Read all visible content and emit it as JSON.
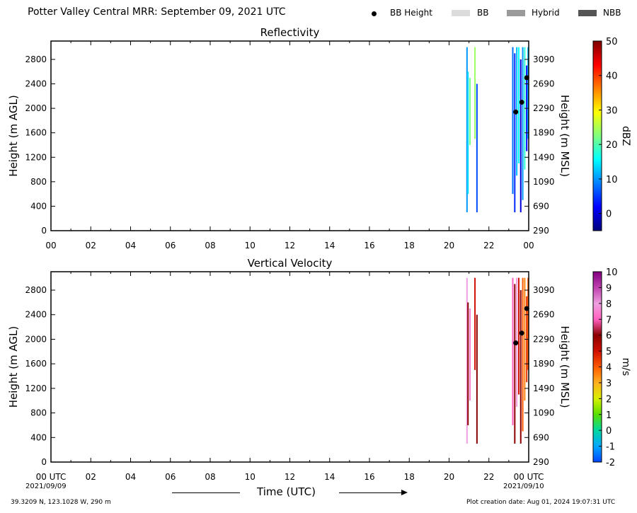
{
  "header": {
    "title": "Potter Valley Central MRR:  September 09, 2021 UTC",
    "legend": [
      {
        "label": "BB Height",
        "kind": "dot",
        "color": "#000000"
      },
      {
        "label": "BB",
        "kind": "swatch",
        "color": "#dcdcdc"
      },
      {
        "label": "Hybrid",
        "kind": "swatch",
        "color": "#9a9a9a"
      },
      {
        "label": "NBB",
        "kind": "swatch",
        "color": "#555555"
      }
    ]
  },
  "footer": {
    "location": "39.3209 N, 123.1028 W, 290 m",
    "created": "Plot creation date: Aug 01, 2024 19:07:31 UTC",
    "xlabel": "Time (UTC)",
    "start_date": "2021/09/09",
    "end_date": "2021/09/10"
  },
  "chart_data": [
    {
      "type": "heatmap",
      "title": "Reflectivity",
      "xlabel": "",
      "ylabel": "Height (m AGL)",
      "ylabel_right": "Height (m MSL)",
      "colorbar_label": "dBZ",
      "xlim": [
        0,
        24
      ],
      "ylim": [
        0,
        3100
      ],
      "x_ticks": [
        "00",
        "02",
        "04",
        "06",
        "08",
        "10",
        "12",
        "14",
        "16",
        "18",
        "20",
        "22",
        "00"
      ],
      "y_ticks": [
        0,
        400,
        800,
        1200,
        1600,
        2000,
        2400,
        2800
      ],
      "y_right_ticks": [
        290,
        690,
        1090,
        1490,
        1890,
        2290,
        2690,
        3090
      ],
      "colorbar": {
        "min": -5,
        "max": 50,
        "ticks": [
          0,
          10,
          20,
          30,
          40,
          50
        ],
        "colormap": "jet"
      },
      "bright_band_heights": [
        {
          "time": 23.35,
          "height": 1940
        },
        {
          "time": 23.65,
          "height": 2100
        },
        {
          "time": 23.9,
          "height": 2500
        }
      ],
      "profiles": [
        {
          "time": 20.9,
          "bottom": 300,
          "top": 3000,
          "value": 10
        },
        {
          "time": 20.95,
          "bottom": 600,
          "top": 2600,
          "value": 14
        },
        {
          "time": 21.05,
          "bottom": 1400,
          "top": 2500,
          "value": 22
        },
        {
          "time": 21.3,
          "bottom": 1500,
          "top": 3000,
          "value": 24
        },
        {
          "time": 21.4,
          "bottom": 300,
          "top": 2400,
          "value": 6
        },
        {
          "time": 23.2,
          "bottom": 600,
          "top": 3000,
          "value": 8
        },
        {
          "time": 23.3,
          "bottom": 300,
          "top": 2900,
          "value": 4
        },
        {
          "time": 23.4,
          "bottom": 900,
          "top": 3000,
          "value": 12
        },
        {
          "time": 23.5,
          "bottom": 1100,
          "top": 3000,
          "value": 16
        },
        {
          "time": 23.6,
          "bottom": 300,
          "top": 2800,
          "value": 0
        },
        {
          "time": 23.7,
          "bottom": 500,
          "top": 3000,
          "value": 10
        },
        {
          "time": 23.8,
          "bottom": 1000,
          "top": 3000,
          "value": 18
        },
        {
          "time": 23.9,
          "bottom": 1300,
          "top": 2700,
          "value": 2
        },
        {
          "time": 23.97,
          "bottom": 1500,
          "top": 3000,
          "value": 12
        }
      ]
    },
    {
      "type": "heatmap",
      "title": "Vertical Velocity",
      "xlabel": "Time (UTC)",
      "ylabel": "Height (m AGL)",
      "ylabel_right": "Height (m MSL)",
      "colorbar_label": "m/s",
      "xlim": [
        0,
        24
      ],
      "ylim": [
        0,
        3100
      ],
      "x_ticks": [
        "00 UTC",
        "02",
        "04",
        "06",
        "08",
        "10",
        "12",
        "14",
        "16",
        "18",
        "20",
        "22",
        "00 UTC"
      ],
      "y_ticks": [
        0,
        400,
        800,
        1200,
        1600,
        2000,
        2400,
        2800
      ],
      "y_right_ticks": [
        290,
        690,
        1090,
        1490,
        1890,
        2290,
        2690,
        3090
      ],
      "colorbar": {
        "min": -2,
        "max": 10,
        "ticks": [
          -2,
          -1,
          0,
          1,
          2,
          3,
          4,
          5,
          6,
          7,
          8,
          9,
          10
        ],
        "colormap": "nws_velocity"
      },
      "bright_band_heights": [
        {
          "time": 23.35,
          "height": 1940
        },
        {
          "time": 23.65,
          "height": 2100
        },
        {
          "time": 23.9,
          "height": 2500
        }
      ],
      "profiles": [
        {
          "time": 20.9,
          "bottom": 300,
          "top": 3000,
          "value": 8
        },
        {
          "time": 20.95,
          "bottom": 600,
          "top": 2600,
          "value": 6
        },
        {
          "time": 21.05,
          "bottom": 1000,
          "top": 2500,
          "value": 7.5
        },
        {
          "time": 21.3,
          "bottom": 1500,
          "top": 3000,
          "value": 5
        },
        {
          "time": 21.4,
          "bottom": 300,
          "top": 2400,
          "value": 6
        },
        {
          "time": 23.2,
          "bottom": 600,
          "top": 3000,
          "value": 7
        },
        {
          "time": 23.3,
          "bottom": 300,
          "top": 2900,
          "value": 6
        },
        {
          "time": 23.4,
          "bottom": 900,
          "top": 3000,
          "value": 8
        },
        {
          "time": 23.5,
          "bottom": 1100,
          "top": 3000,
          "value": 5
        },
        {
          "time": 23.6,
          "bottom": 300,
          "top": 2800,
          "value": 6
        },
        {
          "time": 23.7,
          "bottom": 500,
          "top": 3000,
          "value": 4
        },
        {
          "time": 23.8,
          "bottom": 1000,
          "top": 3000,
          "value": 3.5
        },
        {
          "time": 23.9,
          "bottom": 1300,
          "top": 2700,
          "value": 4.5
        },
        {
          "time": 23.97,
          "bottom": 1500,
          "top": 3000,
          "value": 4
        }
      ]
    }
  ]
}
